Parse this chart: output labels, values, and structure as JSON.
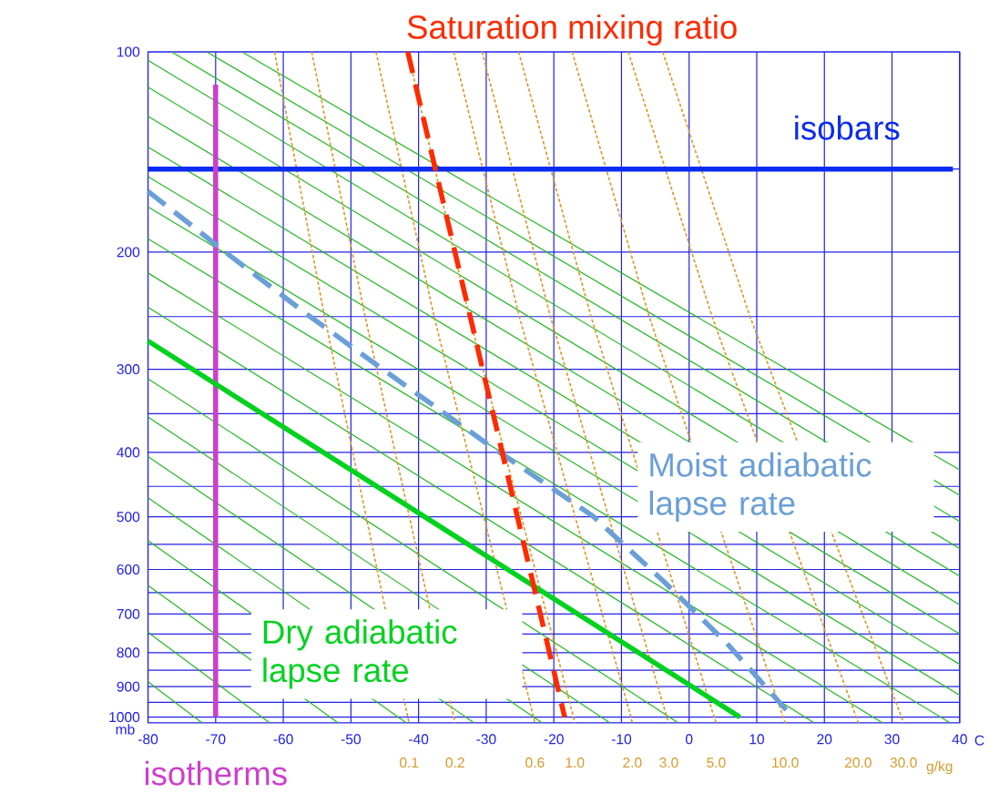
{
  "chart_data": {
    "type": "line",
    "xlabel": "C",
    "ylabel": "mb",
    "xlim": [
      -80,
      40
    ],
    "xticks": [
      -80,
      -70,
      -60,
      -50,
      -40,
      -30,
      -20,
      -10,
      0,
      10,
      20,
      30,
      40
    ],
    "ylim": [
      1020,
      100
    ],
    "yticks": [
      100,
      {
        "value": 150,
        "label": null
      },
      200,
      {
        "value": 250,
        "label": null
      },
      300,
      {
        "value": 350,
        "label": null
      },
      400,
      {
        "value": 450,
        "label": null
      },
      500,
      {
        "value": 550,
        "label": null
      },
      600,
      {
        "value": 650,
        "label": null
      },
      700,
      {
        "value": 750,
        "label": null
      },
      800,
      {
        "value": 850,
        "label": null
      },
      900,
      {
        "value": 950,
        "label": null
      },
      1000
    ],
    "grid": true,
    "marker": "none",
    "log": "y",
    "annotations": [
      "g/kg"
    ],
    "series": [
      {
        "color": "#22b822",
        "line_style": "solid",
        "x": [
          -80,
          -72.0
        ],
        "values": [
          885,
          1020
        ]
      },
      {
        "color": "#22b822",
        "line_style": "solid",
        "x": [
          -80,
          -62.0
        ],
        "values": [
          746,
          1020
        ]
      },
      {
        "color": "#22b822",
        "line_style": "solid",
        "x": [
          -80,
          -51.9
        ],
        "values": [
          634,
          1020
        ]
      },
      {
        "color": "#22b822",
        "line_style": "solid",
        "x": [
          -80,
          -41.8
        ],
        "values": [
          543,
          1020
        ]
      },
      {
        "color": "#22b822",
        "line_style": "solid",
        "x": [
          -80,
          -31.8
        ],
        "values": [
          468,
          1020
        ]
      },
      {
        "color": "#22b822",
        "line_style": "solid",
        "x": [
          -80,
          -21.7
        ],
        "values": [
          406,
          1020
        ]
      },
      {
        "color": "#22b822",
        "line_style": "solid",
        "x": [
          -80,
          -11.7
        ],
        "values": [
          354,
          1020
        ]
      },
      {
        "color": "#22b822",
        "line_style": "solid",
        "x": [
          -80,
          -1.6
        ],
        "values": [
          310,
          1020
        ]
      },
      {
        "color": "#22b822",
        "line_style": "solid",
        "x": [
          -80,
          18.5
        ],
        "values": [
          242,
          1020
        ]
      },
      {
        "color": "#22b822",
        "line_style": "solid",
        "x": [
          -80,
          28.6
        ],
        "values": [
          215,
          1020
        ]
      },
      {
        "color": "#22b822",
        "line_style": "solid",
        "x": [
          -80,
          38.6
        ],
        "values": [
          191,
          1020
        ]
      },
      {
        "color": "#22b822",
        "line_style": "solid",
        "x": [
          -80,
          40
        ],
        "values": [
          171,
          927
        ]
      },
      {
        "color": "#22b822",
        "line_style": "solid",
        "x": [
          -80,
          40
        ],
        "values": [
          154,
          833
        ]
      },
      {
        "color": "#22b822",
        "line_style": "solid",
        "x": [
          -80,
          40
        ],
        "values": [
          139,
          750
        ]
      },
      {
        "color": "#22b822",
        "line_style": "solid",
        "x": [
          -80,
          40
        ],
        "values": [
          125,
          678
        ]
      },
      {
        "color": "#22b822",
        "line_style": "solid",
        "x": [
          -80,
          40
        ],
        "values": [
          113,
          614
        ]
      },
      {
        "color": "#22b822",
        "line_style": "solid",
        "x": [
          -80,
          40
        ],
        "values": [
          103,
          558
        ]
      },
      {
        "color": "#22b822",
        "line_style": "solid",
        "x": [
          -76.5,
          40
        ],
        "values": [
          100,
          508
        ]
      },
      {
        "color": "#22b822",
        "line_style": "solid",
        "x": [
          -71.3,
          40
        ],
        "values": [
          100,
          464
        ]
      },
      {
        "color": "#22b822",
        "line_style": "solid",
        "x": [
          -66.1,
          40
        ],
        "values": [
          100,
          425
        ]
      },
      {
        "name": "0.1",
        "color": "#d99a2b",
        "line_style": "dotted",
        "x": [
          -61.3,
          -53.9,
          -41.6,
          -41.4
        ],
        "values": [
          100,
          250,
          1000,
          1020
        ]
      },
      {
        "name": "0.2",
        "color": "#d99a2b",
        "line_style": "dotted",
        "x": [
          -55.8,
          -47.9,
          -34.8,
          -34.6
        ],
        "values": [
          100,
          250,
          1000,
          1020
        ]
      },
      {
        "name": "0.6",
        "color": "#d99a2b",
        "line_style": "dotted",
        "x": [
          -46.3,
          -37.7,
          -23.0,
          -22.8
        ],
        "values": [
          100,
          250,
          1000,
          1020
        ]
      },
      {
        "name": "1.0",
        "color": "#d99a2b",
        "line_style": "dotted",
        "x": [
          -41.6,
          -32.5,
          -17.1,
          -16.9
        ],
        "values": [
          100,
          250,
          1000,
          1020
        ]
      },
      {
        "name": "2.0",
        "color": "#d99a2b",
        "line_style": "dotted",
        "x": [
          -34.8,
          -25.1,
          -8.6,
          -8.4
        ],
        "values": [
          100,
          250,
          1000,
          1020
        ]
      },
      {
        "name": "3.0",
        "color": "#d99a2b",
        "line_style": "dotted",
        "x": [
          -30.6,
          -20.5,
          -3.3,
          -3.0
        ],
        "values": [
          100,
          250,
          1000,
          1020
        ]
      },
      {
        "name": "5.0",
        "color": "#d99a2b",
        "line_style": "dotted",
        "x": [
          -25.2,
          -14.5,
          3.7,
          4.0
        ],
        "values": [
          100,
          250,
          1000,
          1020
        ]
      },
      {
        "name": "10.0",
        "color": "#d99a2b",
        "line_style": "dotted",
        "x": [
          -17.3,
          -5.9,
          13.9,
          14.2
        ],
        "values": [
          100,
          250,
          1000,
          1020
        ]
      },
      {
        "name": "20.0",
        "color": "#d99a2b",
        "line_style": "dotted",
        "x": [
          -9.0,
          3.4,
          24.7,
          25.0
        ],
        "values": [
          100,
          250,
          1000,
          1020
        ]
      },
      {
        "name": "30.0",
        "color": "#d99a2b",
        "line_style": "dotted",
        "x": [
          -3.9,
          9.0,
          31.4,
          31.7
        ],
        "values": [
          100,
          250,
          1000,
          1020
        ]
      },
      {
        "name": "isobars",
        "color": "#0a2cf0",
        "line_style": "solid",
        "x": [
          -80,
          39
        ],
        "values": [
          150,
          150
        ]
      },
      {
        "name": "isotherms",
        "color": "#cc3fcc",
        "line_style": "solid",
        "x": [
          -70,
          -70
        ],
        "values": [
          112,
          1000
        ]
      },
      {
        "name": "Dry adiabatic lapse rate",
        "color": "#00d21e",
        "line_style": "solid",
        "x": [
          -80,
          7.5
        ],
        "values": [
          272,
          1000
        ]
      },
      {
        "name": "Moist adiabatic lapse rate",
        "color": "#6a9fd8",
        "line_style": "dashed",
        "x": [
          -80,
          -68.0,
          -56.5,
          -45.1,
          -29.3,
          -14.2,
          -3.7,
          5.5,
          15.3
        ],
        "values": [
          162,
          202,
          248,
          301,
          392,
          499,
          626,
          773,
          1000
        ]
      },
      {
        "name": "Saturation mixing ratio",
        "color": "#ff2a00",
        "line_style": "dashed",
        "x": [
          -41.6,
          -18.4
        ],
        "values": [
          100,
          1000
        ]
      }
    ]
  }
}
